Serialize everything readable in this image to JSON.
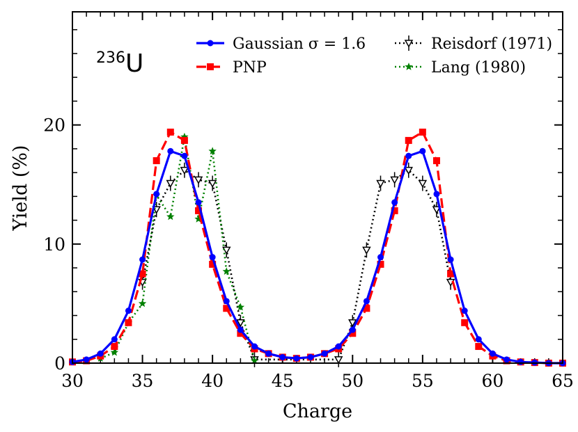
{
  "chart_data": {
    "type": "line",
    "title": "",
    "annotation": {
      "mass": "236",
      "element": "U"
    },
    "xlabel": "Charge",
    "ylabel": "Yield (%)",
    "xlim": [
      30,
      65
    ],
    "ylim": [
      0,
      29.5
    ],
    "xticks": [
      30,
      35,
      40,
      45,
      50,
      55,
      60,
      65
    ],
    "xtick_labels": [
      "30",
      "35",
      "40",
      "45",
      "50",
      "55",
      "60",
      "65"
    ],
    "yticks": [
      0,
      10,
      20
    ],
    "ytick_labels": [
      "0",
      "10",
      "20"
    ],
    "legend_position": "top-right",
    "series": [
      {
        "name": "Gaussian σ = 1.6",
        "color": "#0000ff",
        "style": "solid",
        "marker": "circle",
        "x": [
          30,
          31,
          32,
          33,
          34,
          35,
          36,
          37,
          38,
          39,
          40,
          41,
          42,
          43,
          44,
          45,
          46,
          47,
          48,
          49,
          50,
          51,
          52,
          53,
          54,
          55,
          56,
          57,
          58,
          59,
          60,
          61,
          62,
          63,
          64,
          65
        ],
        "y": [
          0.1,
          0.3,
          0.8,
          2.0,
          4.4,
          8.7,
          14.2,
          17.8,
          17.4,
          13.5,
          8.9,
          5.2,
          2.8,
          1.4,
          0.8,
          0.5,
          0.4,
          0.5,
          0.8,
          1.4,
          2.8,
          5.2,
          8.9,
          13.5,
          17.4,
          17.8,
          14.2,
          8.7,
          4.4,
          2.0,
          0.8,
          0.3,
          0.1,
          0.05,
          0.0,
          0.0
        ]
      },
      {
        "name": "PNP",
        "color": "#ff0000",
        "style": "dashed",
        "marker": "square",
        "x": [
          30,
          31,
          32,
          33,
          34,
          35,
          36,
          37,
          38,
          39,
          40,
          41,
          42,
          43,
          44,
          45,
          46,
          47,
          48,
          49,
          50,
          51,
          52,
          53,
          54,
          55,
          56,
          57,
          58,
          59,
          60,
          61,
          62,
          63,
          64,
          65
        ],
        "y": [
          0.1,
          0.2,
          0.6,
          1.4,
          3.4,
          7.5,
          17.0,
          19.4,
          18.7,
          12.8,
          8.3,
          4.6,
          2.5,
          1.2,
          0.8,
          0.5,
          0.4,
          0.5,
          0.8,
          1.2,
          2.5,
          4.6,
          8.3,
          12.8,
          18.7,
          19.4,
          17.0,
          7.5,
          3.4,
          1.4,
          0.6,
          0.2,
          0.1,
          0.05,
          0.0,
          0.0
        ]
      },
      {
        "name": "Reisdorf (1971)",
        "color": "#000000",
        "style": "dotted",
        "marker": "triangle-down",
        "x": [
          35,
          36,
          37,
          38,
          39,
          40,
          41,
          42,
          43,
          49,
          50,
          51,
          52,
          53,
          54,
          55,
          56,
          57
        ],
        "y": [
          6.8,
          12.9,
          15.1,
          16.2,
          15.4,
          15.1,
          9.5,
          3.4,
          0.3,
          0.3,
          3.4,
          9.5,
          15.1,
          15.4,
          16.2,
          15.1,
          12.9,
          6.8
        ]
      },
      {
        "name": "Lang (1980)",
        "color": "#008000",
        "style": "dotted",
        "marker": "star",
        "x": [
          32,
          33,
          34,
          35,
          36,
          37,
          38,
          39,
          40,
          41,
          42,
          43
        ],
        "y": [
          0.4,
          0.9,
          3.4,
          5.0,
          14.1,
          12.3,
          19.0,
          12.1,
          17.8,
          7.7,
          4.7,
          0.2
        ]
      }
    ]
  }
}
